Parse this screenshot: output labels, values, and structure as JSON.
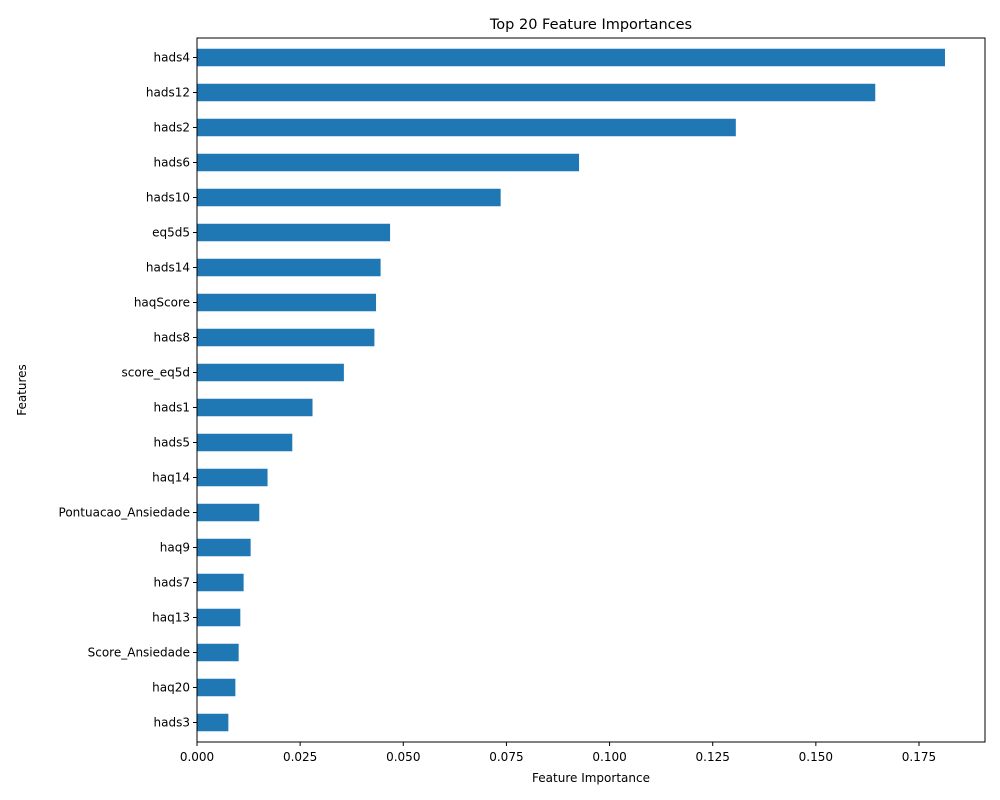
{
  "chart_data": {
    "type": "bar",
    "orientation": "horizontal",
    "title": "Top 20 Feature Importances",
    "xlabel": "Feature Importance",
    "ylabel": "Features",
    "xlim": [
      0,
      0.191
    ],
    "xticks": [
      "0.000",
      "0.025",
      "0.050",
      "0.075",
      "0.100",
      "0.125",
      "0.150",
      "0.175"
    ],
    "grid": false,
    "color": "#1f77b4",
    "categories": [
      "hads4",
      "hads12",
      "hads2",
      "hads6",
      "hads10",
      "eq5d5",
      "hads14",
      "haqScore",
      "hads8",
      "score_eq5d",
      "hads1",
      "hads5",
      "haq14",
      "Pontuacao_Ansiedade",
      "haq9",
      "hads7",
      "haq13",
      "Score_Ansiedade",
      "haq20",
      "hads3"
    ],
    "values": [
      0.1813,
      0.1644,
      0.1306,
      0.0926,
      0.0736,
      0.0468,
      0.0445,
      0.0434,
      0.043,
      0.0356,
      0.028,
      0.0231,
      0.0171,
      0.0151,
      0.013,
      0.0113,
      0.0105,
      0.0101,
      0.0093,
      0.0076
    ]
  }
}
